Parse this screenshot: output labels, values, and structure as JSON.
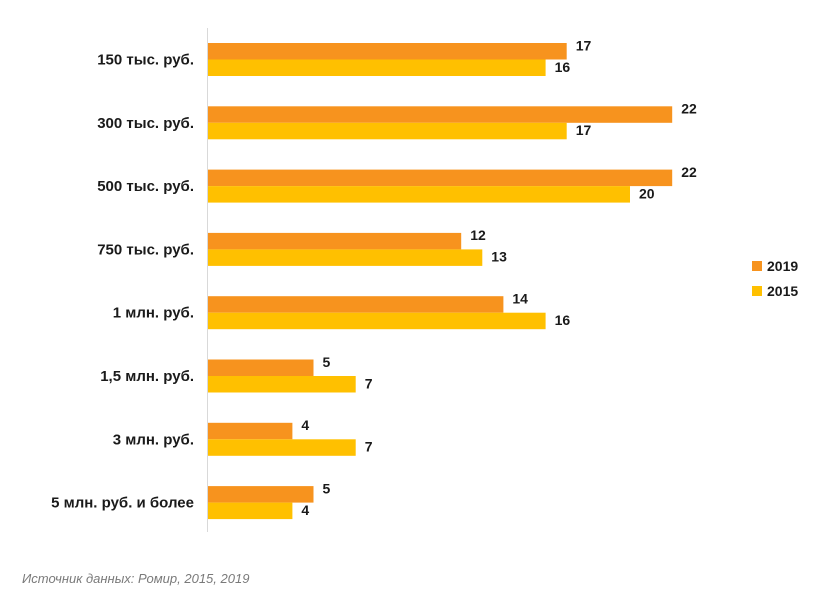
{
  "chart_data": {
    "type": "bar",
    "orientation": "horizontal",
    "categories": [
      "150 тыс. руб.",
      "300 тыс. руб.",
      "500 тыс. руб.",
      "750 тыс. руб.",
      "1 млн. руб.",
      "1,5 млн. руб.",
      "3 млн. руб.",
      "5 млн. руб. и более"
    ],
    "series": [
      {
        "name": "2019",
        "color": "#f7931e",
        "values": [
          17,
          22,
          22,
          12,
          14,
          5,
          4,
          5
        ]
      },
      {
        "name": "2015",
        "color": "#ffc000",
        "values": [
          16,
          17,
          20,
          13,
          16,
          7,
          7,
          4
        ]
      }
    ],
    "xlim": [
      0,
      25
    ],
    "grid": false,
    "legend_position": "right"
  },
  "source_text": "Источник данных: Ромир, 2015, 2019"
}
